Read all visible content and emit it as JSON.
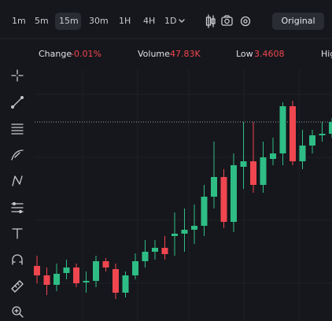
{
  "toolbar": {
    "timeframes": [
      "1m",
      "5m",
      "15m",
      "30m",
      "1H",
      "4H",
      "1D"
    ],
    "selected": "15m",
    "button": "Original"
  },
  "stats": [
    {
      "label": "Change",
      "value": "-0.01%"
    },
    {
      "label": "Volume",
      "value": "47.83K"
    },
    {
      "label": "Low",
      "value": "3.4608"
    },
    {
      "label": "Hig"
    }
  ],
  "chart": {
    "type": "candlestick",
    "ylim": [
      0,
      320
    ],
    "up_color": "#2ebd85",
    "down_color": "#f0464f",
    "last_price": 245,
    "candles": [
      {
        "o": 62,
        "h": 75,
        "l": 40,
        "c": 50
      },
      {
        "o": 50,
        "h": 60,
        "l": 25,
        "c": 38
      },
      {
        "o": 38,
        "h": 65,
        "l": 30,
        "c": 52
      },
      {
        "o": 53,
        "h": 70,
        "l": 45,
        "c": 60
      },
      {
        "o": 60,
        "h": 65,
        "l": 35,
        "c": 40
      },
      {
        "o": 41,
        "h": 55,
        "l": 28,
        "c": 43
      },
      {
        "o": 43,
        "h": 75,
        "l": 35,
        "c": 68
      },
      {
        "o": 68,
        "h": 72,
        "l": 55,
        "c": 60
      },
      {
        "o": 58,
        "h": 65,
        "l": 20,
        "c": 28
      },
      {
        "o": 28,
        "h": 55,
        "l": 22,
        "c": 50
      },
      {
        "o": 50,
        "h": 78,
        "l": 45,
        "c": 68
      },
      {
        "o": 68,
        "h": 95,
        "l": 60,
        "c": 80
      },
      {
        "o": 80,
        "h": 95,
        "l": 70,
        "c": 85
      },
      {
        "o": 85,
        "h": 100,
        "l": 70,
        "c": 77
      },
      {
        "o": 100,
        "h": 130,
        "l": 75,
        "c": 103
      },
      {
        "o": 103,
        "h": 135,
        "l": 80,
        "c": 108
      },
      {
        "o": 108,
        "h": 140,
        "l": 90,
        "c": 113
      },
      {
        "o": 113,
        "h": 165,
        "l": 100,
        "c": 150
      },
      {
        "o": 150,
        "h": 220,
        "l": 135,
        "c": 175
      },
      {
        "o": 175,
        "h": 185,
        "l": 110,
        "c": 118
      },
      {
        "o": 118,
        "h": 205,
        "l": 105,
        "c": 190
      },
      {
        "o": 188,
        "h": 245,
        "l": 160,
        "c": 195
      },
      {
        "o": 195,
        "h": 245,
        "l": 155,
        "c": 165
      },
      {
        "o": 165,
        "h": 220,
        "l": 155,
        "c": 200
      },
      {
        "o": 198,
        "h": 225,
        "l": 190,
        "c": 205
      },
      {
        "o": 205,
        "h": 270,
        "l": 190,
        "c": 265
      },
      {
        "o": 265,
        "h": 272,
        "l": 190,
        "c": 195
      },
      {
        "o": 195,
        "h": 235,
        "l": 185,
        "c": 215
      },
      {
        "o": 215,
        "h": 235,
        "l": 205,
        "c": 228
      },
      {
        "o": 228,
        "h": 245,
        "l": 220,
        "c": 230
      },
      {
        "o": 230,
        "h": 250,
        "l": 225,
        "c": 245
      }
    ]
  }
}
